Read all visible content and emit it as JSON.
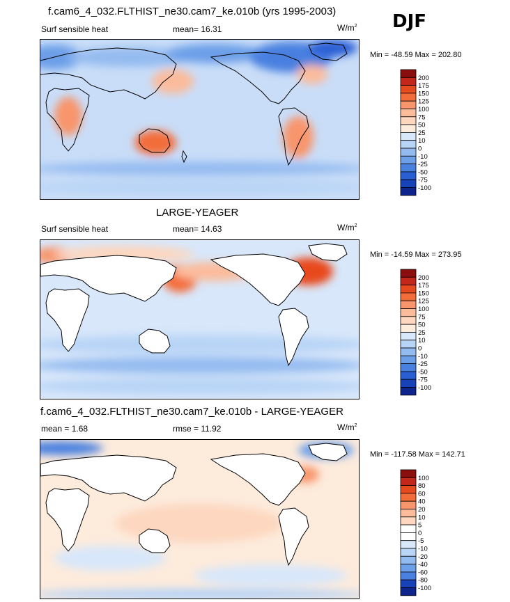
{
  "season": "DJF",
  "panels": [
    {
      "id": "test",
      "title": "f.cam6_4_032.FLTHIST_ne30.cam7_ke.010b (yrs 1995-2003)",
      "variable": "Surf sensible heat",
      "stat_text": "mean=  16.31",
      "units": "W/m",
      "units_sup": "2",
      "minmax": "Min = -48.59 Max = 202.80",
      "levels": [
        "200",
        "175",
        "150",
        "125",
        "100",
        "75",
        "50",
        "25",
        "10",
        "0",
        "-10",
        "-25",
        "-50",
        "-75",
        "-100"
      ],
      "colors": [
        "#8a0e0e",
        "#c3261b",
        "#e84a1f",
        "#f36d3b",
        "#f8956c",
        "#fbbc9c",
        "#fdd7c0",
        "#fdebdc",
        "#d8e7fa",
        "#b8d4f6",
        "#94bbf0",
        "#6c9fe8",
        "#4a80e0",
        "#2a5fd4",
        "#1742b8",
        "#0e238c"
      ]
    },
    {
      "id": "ref",
      "title": "LARGE-YEAGER",
      "variable": "Surf sensible heat",
      "stat_text": "mean=  14.63",
      "units": "W/m",
      "units_sup": "2",
      "minmax": "Min = -14.59 Max = 273.95",
      "levels": [
        "200",
        "175",
        "150",
        "125",
        "100",
        "75",
        "50",
        "25",
        "10",
        "0",
        "-10",
        "-25",
        "-50",
        "-75",
        "-100"
      ],
      "colors": [
        "#8a0e0e",
        "#c3261b",
        "#e84a1f",
        "#f36d3b",
        "#f8956c",
        "#fbbc9c",
        "#fdd7c0",
        "#fdebdc",
        "#d8e7fa",
        "#b8d4f6",
        "#94bbf0",
        "#6c9fe8",
        "#4a80e0",
        "#2a5fd4",
        "#1742b8",
        "#0e238c"
      ]
    },
    {
      "id": "diff",
      "title": "f.cam6_4_032.FLTHIST_ne30.cam7_ke.010b - LARGE-YEAGER",
      "variable": "mean =   1.68",
      "stat_text": "rmse =  11.92",
      "units": "W/m",
      "units_sup": "2",
      "minmax": "Min = -117.58 Max = 142.71",
      "levels": [
        "100",
        "80",
        "60",
        "40",
        "20",
        "10",
        "5",
        "0",
        "-5",
        "-10",
        "-20",
        "-40",
        "-60",
        "-80",
        "-100"
      ],
      "colors": [
        "#8a0e0e",
        "#c3261b",
        "#e84a1f",
        "#f36d3b",
        "#f8956c",
        "#fbbc9c",
        "#fdd7c0",
        "#ffffff",
        "#ffffff",
        "#d8e7fa",
        "#b8d4f6",
        "#94bbf0",
        "#6c9fe8",
        "#4a80e0",
        "#1742b8",
        "#0e238c"
      ]
    }
  ],
  "chart_data": [
    {
      "type": "heatmap",
      "title": "f.cam6_4_032.FLTHIST_ne30.cam7_ke.010b (yrs 1995-2003)",
      "subtitle": "Surf sensible heat",
      "season": "DJF",
      "units": "W/m2",
      "mean": 16.31,
      "min": -48.59,
      "max": 202.8,
      "contour_levels": [
        -100,
        -75,
        -50,
        -25,
        -10,
        0,
        10,
        25,
        50,
        75,
        100,
        125,
        150,
        175,
        200
      ]
    },
    {
      "type": "heatmap",
      "title": "LARGE-YEAGER",
      "subtitle": "Surf sensible heat",
      "season": "DJF",
      "units": "W/m2",
      "mean": 14.63,
      "min": -14.59,
      "max": 273.95,
      "contour_levels": [
        -100,
        -75,
        -50,
        -25,
        -10,
        0,
        10,
        25,
        50,
        75,
        100,
        125,
        150,
        175,
        200
      ]
    },
    {
      "type": "heatmap",
      "title": "f.cam6_4_032.FLTHIST_ne30.cam7_ke.010b - LARGE-YEAGER",
      "season": "DJF",
      "units": "W/m2",
      "mean": 1.68,
      "rmse": 11.92,
      "min": -117.58,
      "max": 142.71,
      "contour_levels": [
        -100,
        -80,
        -60,
        -40,
        -20,
        -10,
        -5,
        0,
        5,
        10,
        20,
        40,
        60,
        80,
        100
      ]
    }
  ]
}
